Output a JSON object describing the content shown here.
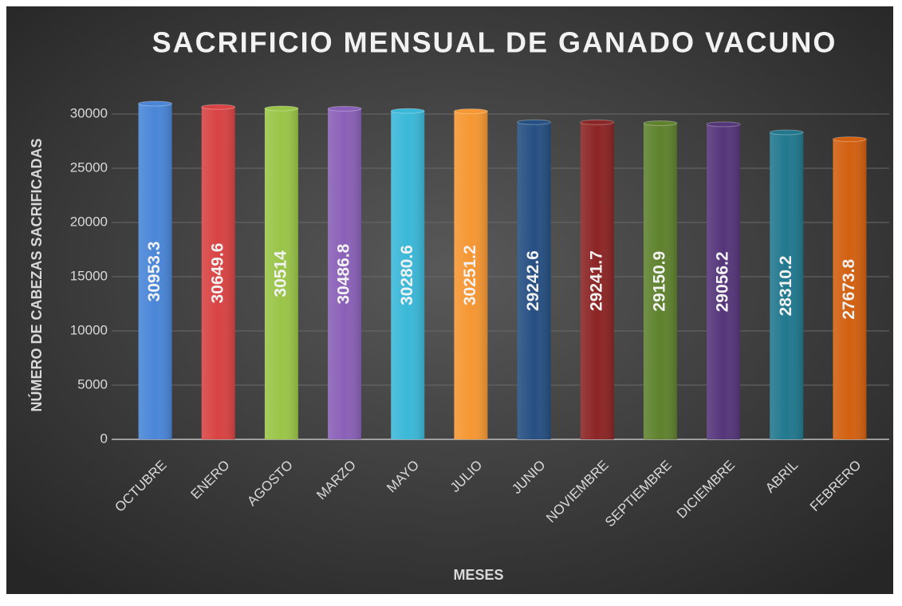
{
  "chart_data": {
    "type": "bar",
    "title": "SACRIFICIO MENSUAL DE GANADO VACUNO",
    "x_label": "MESES",
    "y_label": "NÚMERO DE CABEZAS SACRIFICADAS",
    "categories": [
      "OCTUBRE",
      "ENERO",
      "AGOSTO",
      "MARZO",
      "MAYO",
      "JULIO",
      "JUNIO",
      "NOVIEMBRE",
      "SEPTIEMBRE",
      "DICIEMBRE",
      "ABRIL",
      "FEBRERO"
    ],
    "values": [
      30953.3,
      30649.6,
      30514,
      30486.8,
      30280.6,
      30251.2,
      29242.6,
      29241.7,
      29150.9,
      29056.2,
      28310.2,
      27673.8
    ],
    "colors": [
      "#4a86d8",
      "#d94343",
      "#9ac548",
      "#8a60b8",
      "#3bb8d8",
      "#f59733",
      "#264f82",
      "#8c2525",
      "#5f822e",
      "#55367a",
      "#21788e",
      "#d26010"
    ],
    "ylim": [
      0,
      35000
    ],
    "yticks": [
      0,
      5000,
      10000,
      15000,
      20000,
      25000,
      30000
    ],
    "grid": true
  }
}
